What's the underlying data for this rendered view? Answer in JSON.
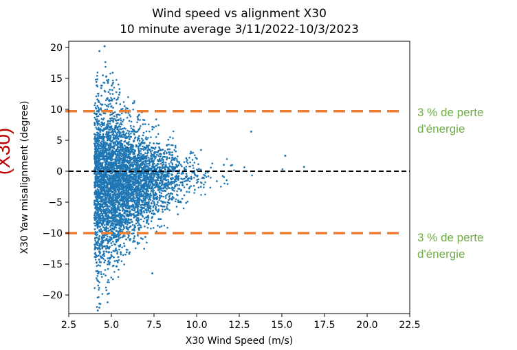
{
  "chart_data": {
    "type": "scatter",
    "title": "Wind speed vs alignment X30",
    "subtitle": "10 minute average 3/11/2022-10/3/2023",
    "xlabel": "X30 Wind Speed (m/s)",
    "ylabel": "X30 Yaw misalignment (degree)",
    "xlim": [
      2.5,
      22.5
    ],
    "ylim": [
      -23,
      21
    ],
    "xticks": [
      "2.5",
      "5.0",
      "7.5",
      "10.0",
      "12.5",
      "15.0",
      "17.5",
      "20.0",
      "22.5"
    ],
    "yticks": [
      "20",
      "15",
      "10",
      "5",
      "0",
      "−5",
      "−10",
      "−15",
      "−20"
    ],
    "grid": false,
    "series": [
      {
        "color": "#1f77b4",
        "marker": "dot",
        "density_envelope": [
          {
            "x": 4.0,
            "y_min": -23,
            "y_max": 20
          },
          {
            "x": 5.0,
            "y_min": -21,
            "y_max": 18
          },
          {
            "x": 6.0,
            "y_min": -15,
            "y_max": 13
          },
          {
            "x": 7.5,
            "y_min": -11,
            "y_max": 9
          },
          {
            "x": 9.0,
            "y_min": -8,
            "y_max": 6
          },
          {
            "x": 10.5,
            "y_min": -5,
            "y_max": 4
          },
          {
            "x": 12.0,
            "y_min": -3,
            "y_max": 3
          },
          {
            "x": 14.0,
            "y_min": -1.5,
            "y_max": 2.5
          },
          {
            "x": 16.3,
            "y_min": 0,
            "y_max": 1
          }
        ],
        "bulk_mean": -2,
        "notable_points": [
          {
            "x": 4.6,
            "y": 20.2
          },
          {
            "x": 4.3,
            "y": 19.4
          },
          {
            "x": 13.2,
            "y": 6.4
          },
          {
            "x": 15.2,
            "y": 2.5
          },
          {
            "x": 16.3,
            "y": 0.7
          },
          {
            "x": 7.4,
            "y": -16.5
          },
          {
            "x": 4.2,
            "y": -22.5
          }
        ]
      }
    ],
    "reference_lines": [
      {
        "y": 0,
        "style": "dashed",
        "color": "#000000"
      },
      {
        "y": 9.7,
        "style": "dashed",
        "color": "#ed7d31",
        "label": "3 % de perte d'énergie"
      },
      {
        "y": -10,
        "style": "dashed",
        "color": "#ed7d31",
        "label": "3 % de perte d'énergie"
      }
    ]
  },
  "annotations": {
    "upper_line1": "3 % de perte",
    "upper_line2": "d'énergie",
    "lower_line1": "3 % de perte",
    "lower_line2": "d'énergie",
    "side_text": "(X30)"
  },
  "colors": {
    "points": "#1f77b4",
    "reference": "#ed7d31",
    "zero": "#000000",
    "annotation": "#70ad47",
    "side_text": "#c00000"
  }
}
